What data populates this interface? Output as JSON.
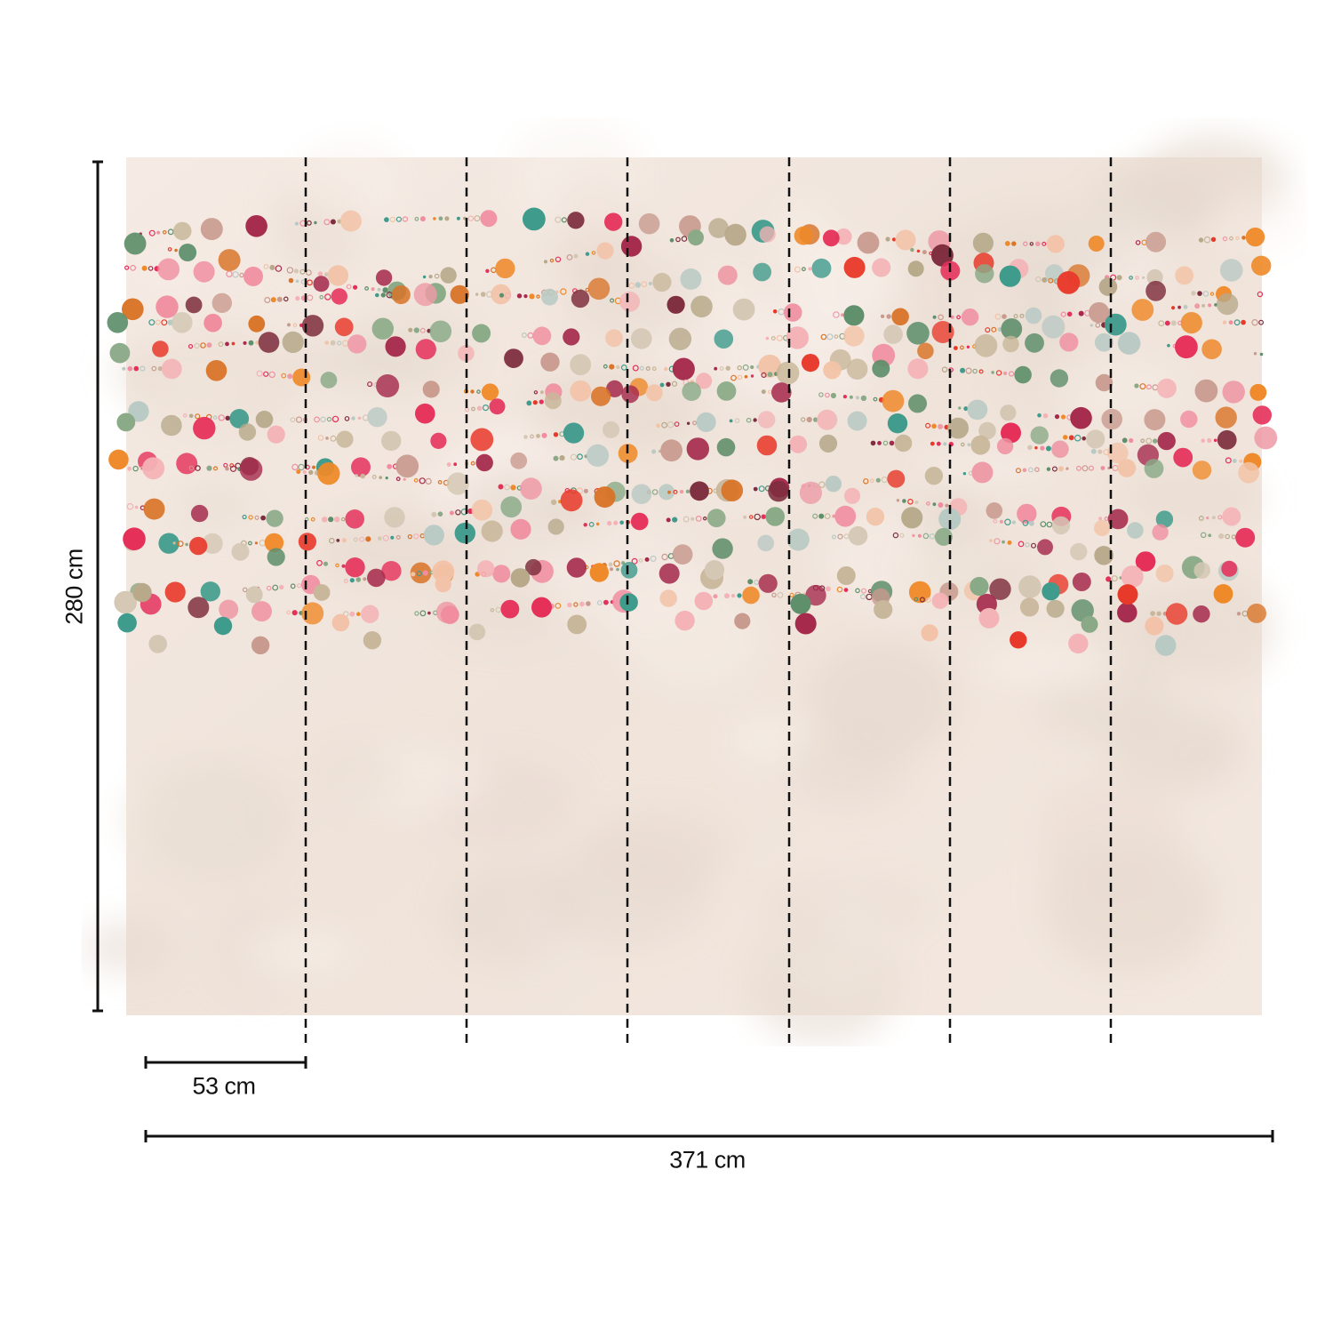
{
  "dimensions": {
    "height_label": "280 cm",
    "panel_width_label": "53 cm",
    "total_width_label": "371 cm",
    "height_cm": 280,
    "panel_width_cm": 53,
    "total_width_cm": 371,
    "panel_count": 7
  },
  "colors": {
    "background": "#f3e7df",
    "dash": "#111111",
    "dimension_line": "#111111",
    "dot_palette": [
      "#e5305a",
      "#e83a2b",
      "#ef8a2b",
      "#d9752a",
      "#5f8f6b",
      "#3f9b8c",
      "#8aaa87",
      "#b7a98a",
      "#c8b79a",
      "#f2c3a8",
      "#f4b3b6",
      "#f08ea0",
      "#c99a8e",
      "#a52a4c",
      "#7e2e3e",
      "#b9c9c4",
      "#d4c7b4",
      "#ee9ba6"
    ]
  }
}
